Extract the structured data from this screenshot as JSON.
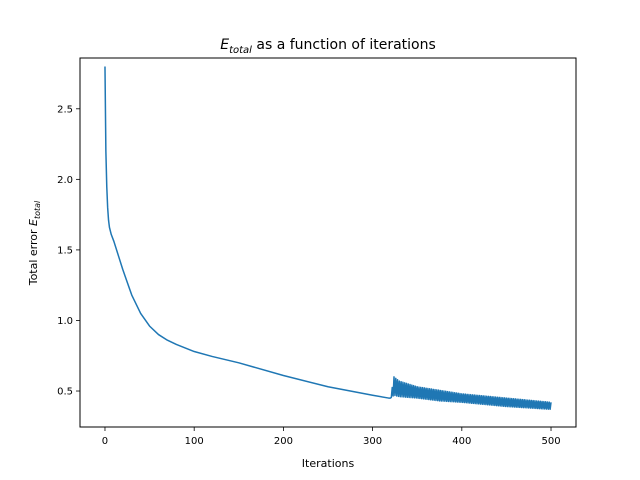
{
  "chart_data": {
    "type": "line",
    "title": {
      "symbol": "E",
      "subscript": "total",
      "rest": " as a function of iterations"
    },
    "xlabel": "Iterations",
    "ylabel": {
      "prefix": "Total error ",
      "symbol": "E",
      "subscript": "total"
    },
    "xlim": [
      -28,
      528
    ],
    "ylim": [
      0.245,
      2.86
    ],
    "x_ticks": [
      0,
      100,
      200,
      300,
      400,
      500
    ],
    "x_tick_labels": [
      "0",
      "100",
      "200",
      "300",
      "400",
      "500"
    ],
    "y_ticks": [
      0.5,
      1.0,
      1.5,
      2.0,
      2.5
    ],
    "y_tick_labels": [
      "0.5",
      "1.0",
      "1.5",
      "2.0",
      "2.5"
    ],
    "grid": false,
    "line_color": "#1f77b4",
    "series": [
      {
        "x": [
          0,
          1,
          2,
          3,
          4,
          5,
          7,
          10,
          15,
          20,
          25,
          30,
          40,
          50,
          60,
          70,
          80,
          100,
          120,
          150,
          200,
          250,
          300,
          318,
          320
        ],
        "y": [
          2.8,
          2.2,
          1.95,
          1.8,
          1.71,
          1.66,
          1.61,
          1.56,
          1.46,
          1.36,
          1.27,
          1.18,
          1.05,
          0.96,
          0.9,
          0.86,
          0.83,
          0.78,
          0.745,
          0.7,
          0.61,
          0.53,
          0.47,
          0.45,
          0.45
        ]
      }
    ],
    "oscillation": {
      "start": 320,
      "end": 500,
      "upper": {
        "x": [
          320,
          324,
          330,
          340,
          350,
          375,
          400,
          450,
          500
        ],
        "y": [
          0.45,
          0.6,
          0.57,
          0.55,
          0.53,
          0.505,
          0.48,
          0.45,
          0.42
        ]
      },
      "lower": {
        "x": [
          320,
          324,
          330,
          340,
          350,
          375,
          400,
          450,
          500
        ],
        "y": [
          0.45,
          0.47,
          0.46,
          0.455,
          0.45,
          0.43,
          0.42,
          0.39,
          0.37
        ]
      }
    }
  }
}
